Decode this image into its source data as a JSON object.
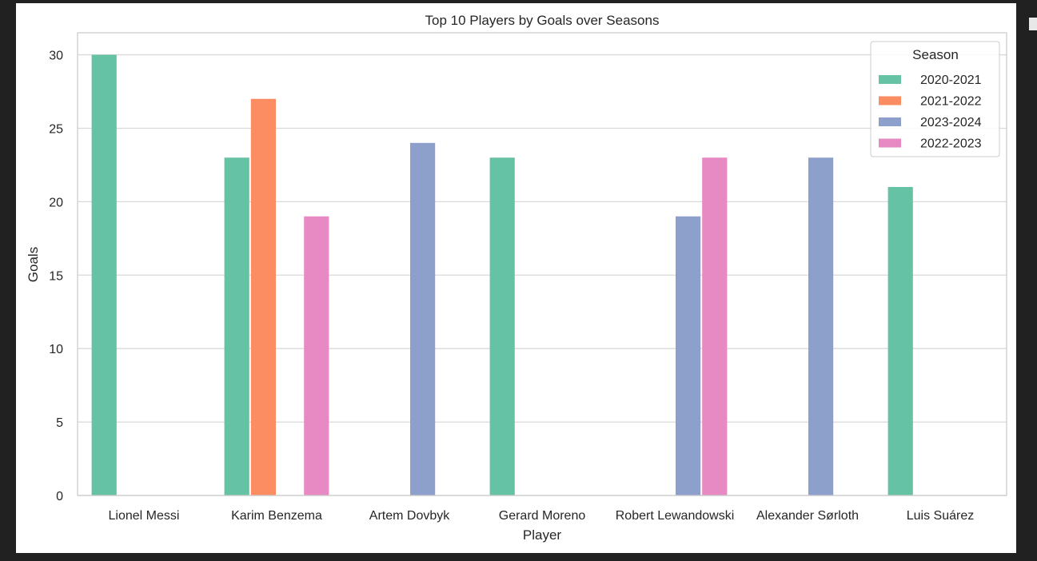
{
  "chart_data": {
    "type": "bar",
    "title": "Top 10 Players by Goals over Seasons",
    "xlabel": "Player",
    "ylabel": "Goals",
    "ylim": [
      0,
      31.5
    ],
    "yticks": [
      0,
      5,
      10,
      15,
      20,
      25,
      30
    ],
    "grid": true,
    "legend": {
      "title": "Season",
      "position": "top-right"
    },
    "categories": [
      "Lionel Messi",
      "Karim Benzema",
      "Artem Dovbyk",
      "Gerard Moreno",
      "Robert Lewandowski",
      "Alexander Sørloth",
      "Luis Suárez"
    ],
    "series": [
      {
        "name": "2020-2021",
        "color": "#66c2a5",
        "values": [
          30,
          23,
          null,
          23,
          null,
          null,
          21
        ]
      },
      {
        "name": "2021-2022",
        "color": "#fc8d62",
        "values": [
          null,
          27,
          null,
          null,
          null,
          null,
          null
        ]
      },
      {
        "name": "2023-2024",
        "color": "#8da0cb",
        "values": [
          null,
          null,
          24,
          null,
          19,
          23,
          null
        ]
      },
      {
        "name": "2022-2023",
        "color": "#e78ac3",
        "values": [
          null,
          19,
          null,
          null,
          23,
          null,
          null
        ]
      }
    ]
  }
}
